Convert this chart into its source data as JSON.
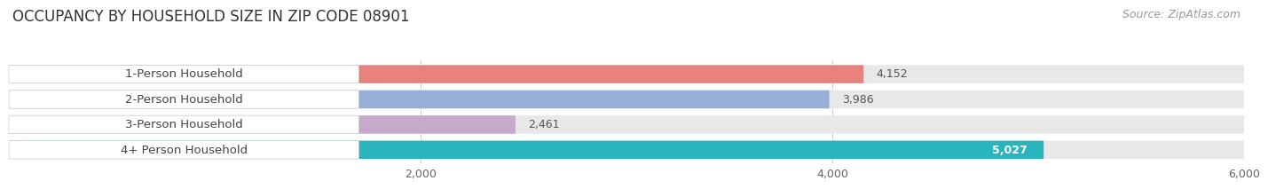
{
  "title": "OCCUPANCY BY HOUSEHOLD SIZE IN ZIP CODE 08901",
  "source": "Source: ZipAtlas.com",
  "categories": [
    "1-Person Household",
    "2-Person Household",
    "3-Person Household",
    "4+ Person Household"
  ],
  "values": [
    4152,
    3986,
    2461,
    5027
  ],
  "bar_colors": [
    "#e8827c",
    "#97aed6",
    "#c5aacb",
    "#2ab5bc"
  ],
  "value_colors": [
    "#555555",
    "#555555",
    "#555555",
    "#ffffff"
  ],
  "xlim": [
    0,
    6000
  ],
  "xticks": [
    2000,
    4000,
    6000
  ],
  "xtick_labels": [
    "2,000",
    "4,000",
    "6,000"
  ],
  "background_color": "#ffffff",
  "bar_bg_color": "#e8e8e8",
  "title_fontsize": 12,
  "source_fontsize": 9,
  "label_fontsize": 9.5,
  "value_fontsize": 9,
  "tick_fontsize": 9
}
